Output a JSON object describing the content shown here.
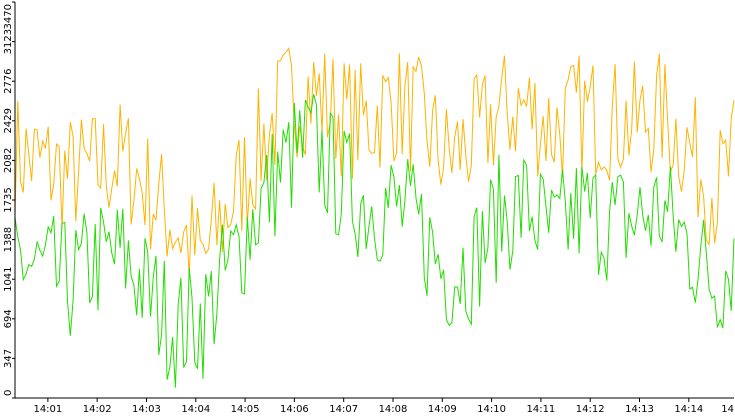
{
  "chart_data": {
    "type": "line",
    "title": "",
    "xlabel": "",
    "ylabel": "",
    "ylim": [
      0,
      3470
    ],
    "y_ticks": [
      0,
      347,
      694,
      1041,
      1388,
      1735,
      2082,
      2429,
      2776,
      3123,
      3470
    ],
    "x_tick_labels": [
      "14:01",
      "14:02",
      "14:03",
      "14:04",
      "14:05",
      "14:06",
      "14:07",
      "14:08",
      "14:09",
      "14:10",
      "14:11",
      "14:12",
      "14:13",
      "14:14",
      "14"
    ],
    "x_time_range": [
      "14:00:20",
      "14:14:55"
    ],
    "grid": false,
    "legend": "none",
    "series": [
      {
        "color": "#ffb300",
        "x": [
          "14:00:20",
          "14:00:53",
          "14:01:26",
          "14:01:58",
          "14:02:31",
          "14:03:04",
          "14:03:37",
          "14:04:09",
          "14:04:42",
          "14:05:15",
          "14:05:48",
          "14:06:20",
          "14:06:53",
          "14:07:26",
          "14:07:59",
          "14:08:31",
          "14:09:04",
          "14:09:37",
          "14:10:10",
          "14:10:42",
          "14:11:15",
          "14:11:48",
          "14:12:21",
          "14:12:53",
          "14:13:26",
          "14:13:59",
          "14:14:32",
          "14:14:55"
        ],
        "values": [
          2150,
          2050,
          1950,
          2000,
          2100,
          1800,
          1500,
          1200,
          1700,
          2150,
          2600,
          2700,
          2500,
          2400,
          2600,
          2450,
          2100,
          2250,
          2500,
          2550,
          2350,
          2500,
          2450,
          2400,
          2500,
          2200,
          1800,
          2100
        ]
      },
      {
        "color": "#22dd00",
        "x": [
          "14:00:20",
          "14:00:53",
          "14:01:26",
          "14:01:58",
          "14:02:31",
          "14:03:04",
          "14:03:37",
          "14:04:09",
          "14:04:42",
          "14:05:15",
          "14:05:48",
          "14:06:20",
          "14:06:53",
          "14:07:26",
          "14:07:59",
          "14:08:31",
          "14:09:04",
          "14:09:37",
          "14:10:10",
          "14:10:42",
          "14:11:15",
          "14:11:48",
          "14:12:21",
          "14:12:53",
          "14:13:26",
          "14:13:59",
          "14:14:32",
          "14:14:55"
        ],
        "values": [
          1250,
          1100,
          1000,
          1200,
          1250,
          900,
          600,
          700,
          1150,
          1650,
          2050,
          2250,
          1900,
          1700,
          1700,
          1500,
          1100,
          1200,
          1600,
          1700,
          1400,
          1650,
          1550,
          1550,
          1650,
          1350,
          1000,
          1250
        ]
      }
    ]
  }
}
